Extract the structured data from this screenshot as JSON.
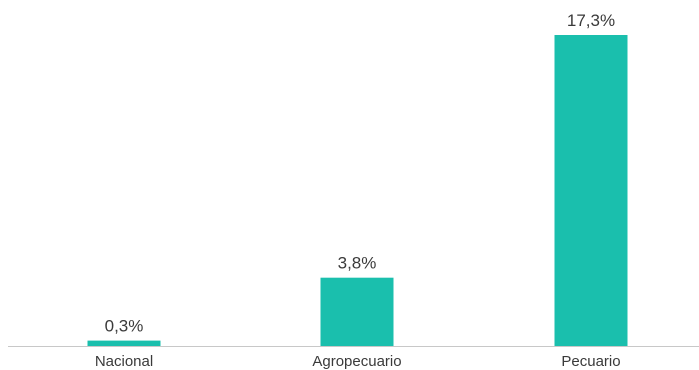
{
  "chart_data": {
    "type": "bar",
    "title": "",
    "xlabel": "",
    "ylabel": "",
    "categories": [
      "Nacional",
      "Agropecuario",
      "Pecuario"
    ],
    "values": [
      0.3,
      3.8,
      17.3
    ],
    "data_labels": [
      "0,3%",
      "3,8%",
      "17,3%"
    ],
    "ylim": [
      0,
      17.3
    ],
    "grid": false,
    "legend": "none",
    "colors": {
      "bar": "#1abfad",
      "axis": "#c8c8c8",
      "text": "#3a3a3a"
    }
  }
}
